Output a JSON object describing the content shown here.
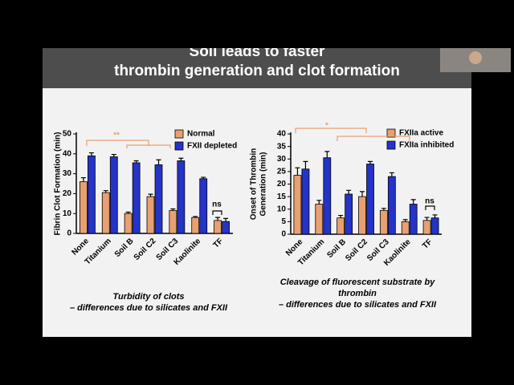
{
  "slide_title": [
    "Soil leads to faster",
    "thrombin generation and clot formation"
  ],
  "chart_data": [
    {
      "type": "bar",
      "ylabel": [
        "Fibrin Clot Formation (min)"
      ],
      "categories": [
        "None",
        "Titanium",
        "Soil B",
        "Soil C2",
        "Soil C3",
        "Kaolinite",
        "TF"
      ],
      "series": [
        {
          "name": "Normal",
          "color": "#e9a071",
          "values": [
            26,
            20.5,
            10,
            18.5,
            11.5,
            8,
            6.5
          ],
          "errors": [
            2,
            1,
            0.7,
            1.2,
            0.8,
            0.5,
            1.5
          ]
        },
        {
          "name": "FXII depleted",
          "color": "#2433c8",
          "values": [
            39,
            38.5,
            35.5,
            34.5,
            36.5,
            27.5,
            6
          ],
          "errors": [
            1.5,
            1.2,
            1,
            2.5,
            1.3,
            0.7,
            1.5
          ]
        }
      ],
      "ylim": [
        0,
        50
      ],
      "yticks": [
        0,
        10,
        20,
        30,
        40,
        50
      ],
      "annotations": [
        "**",
        "ns"
      ],
      "caption": [
        "Turbidity of clots",
        "– differences due to silicates and FXII"
      ]
    },
    {
      "type": "bar",
      "ylabel": [
        "Onset of Thrombin",
        "Generation (min)"
      ],
      "categories": [
        "None",
        "Titanium",
        "Soil B",
        "Soil C2",
        "Soil C3",
        "Kaolinite",
        "TF"
      ],
      "series": [
        {
          "name": "FXIIa active",
          "color": "#e9a071",
          "values": [
            23.5,
            12,
            6.5,
            15,
            9.5,
            5,
            5.5
          ],
          "errors": [
            3,
            1.5,
            1,
            2,
            0.8,
            0.8,
            1.2
          ]
        },
        {
          "name": "FXIIa inhibited",
          "color": "#2433c8",
          "values": [
            26,
            30.5,
            16,
            28,
            23,
            12,
            6.5
          ],
          "errors": [
            3,
            2.5,
            1.5,
            1,
            1.5,
            1.8,
            1.2
          ]
        }
      ],
      "ylim": [
        0,
        40
      ],
      "yticks": [
        0,
        5,
        10,
        15,
        20,
        25,
        30,
        35,
        40
      ],
      "annotations": [
        "*",
        "ns"
      ],
      "caption": [
        "Cleavage of fluorescent substrate by",
        "thrombin",
        "– differences due to silicates and FXII"
      ]
    }
  ]
}
